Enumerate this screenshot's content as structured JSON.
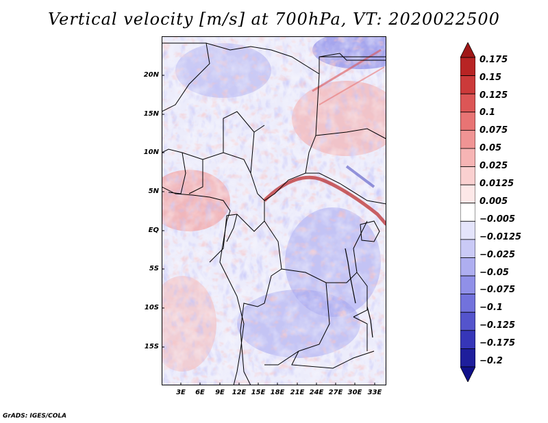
{
  "title": "Vertical velocity [m/s] at 700hPa, VT: 2020022500",
  "y_axis_labels": [
    "20N",
    "15N",
    "10N",
    "5N",
    "EQ",
    "5S",
    "10S",
    "15S"
  ],
  "x_axis_labels": [
    "3E",
    "6E",
    "9E",
    "12E",
    "15E",
    "18E",
    "21E",
    "24E",
    "27E",
    "30E",
    "33E"
  ],
  "colorbar": {
    "levels": [
      "0.175",
      "0.15",
      "0.125",
      "0.1",
      "0.075",
      "0.05",
      "0.025",
      "0.0125",
      "0.005",
      "−0.005",
      "−0.0125",
      "−0.025",
      "−0.05",
      "−0.075",
      "−0.1",
      "−0.125",
      "−0.175",
      "−0.2"
    ],
    "colors": [
      "#a01818",
      "#b82424",
      "#cc3a3a",
      "#dc5656",
      "#e87474",
      "#f09494",
      "#f6b4b4",
      "#fad0d0",
      "#fde8e8",
      "#ffffff",
      "#e4e4fb",
      "#cacaf6",
      "#aeaef0",
      "#9090e8",
      "#7272dc",
      "#5454cc",
      "#3636b8",
      "#1e1e9c",
      "#10108a"
    ]
  },
  "credit": "GrADS: IGES/COLA"
}
